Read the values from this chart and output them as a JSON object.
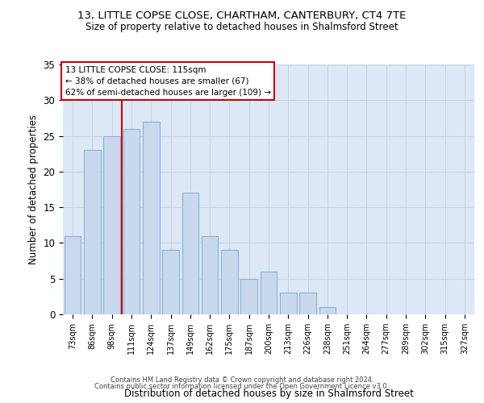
{
  "title1": "13, LITTLE COPSE CLOSE, CHARTHAM, CANTERBURY, CT4 7TE",
  "title2": "Size of property relative to detached houses in Shalmsford Street",
  "xlabel": "Distribution of detached houses by size in Shalmsford Street",
  "ylabel": "Number of detached properties",
  "footer1": "Contains HM Land Registry data © Crown copyright and database right 2024.",
  "footer2": "Contains public sector information licensed under the Open Government Licence v3.0.",
  "annotation_title": "13 LITTLE COPSE CLOSE: 115sqm",
  "annotation_line2": "← 38% of detached houses are smaller (67)",
  "annotation_line3": "62% of semi-detached houses are larger (109) →",
  "bar_labels": [
    "73sqm",
    "86sqm",
    "98sqm",
    "111sqm",
    "124sqm",
    "137sqm",
    "149sqm",
    "162sqm",
    "175sqm",
    "187sqm",
    "200sqm",
    "213sqm",
    "226sqm",
    "238sqm",
    "251sqm",
    "264sqm",
    "277sqm",
    "289sqm",
    "302sqm",
    "315sqm",
    "327sqm"
  ],
  "bar_values": [
    11,
    23,
    25,
    26,
    27,
    9,
    17,
    11,
    9,
    5,
    6,
    3,
    3,
    1,
    0,
    0,
    0,
    0,
    0,
    0,
    0
  ],
  "bar_color": "#c8d9ee",
  "bar_edge_color": "#8ab0d4",
  "highlight_line_index": 3,
  "highlight_color": "#cc0000",
  "annotation_box_color": "#ffffff",
  "annotation_box_edge": "#cc0000",
  "ylim": [
    0,
    35
  ],
  "yticks": [
    0,
    5,
    10,
    15,
    20,
    25,
    30,
    35
  ],
  "grid_color": "#c8d4e0",
  "bg_color": "#dce8f5"
}
